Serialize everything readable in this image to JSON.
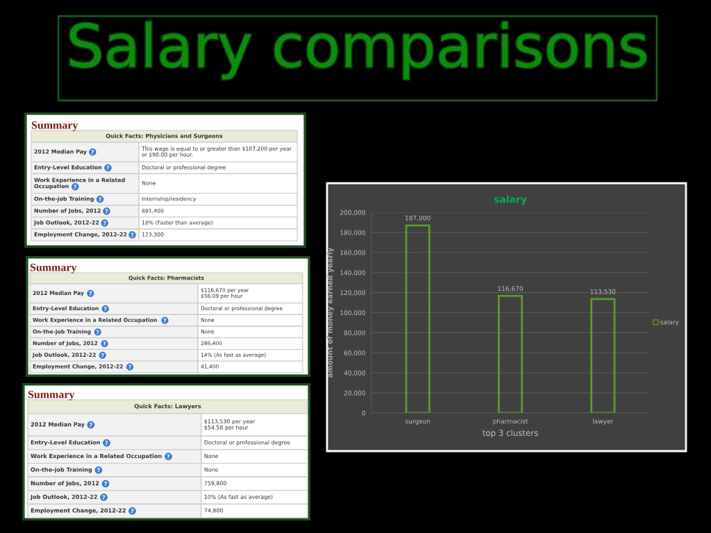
{
  "chart_data": [
    {
      "type": "other",
      "title": "Salary comparisons"
    },
    {
      "type": "other",
      "title": "Summary",
      "subtitle": "Quick Facts: Physicians and Surgeons",
      "annotations": [
        "2012 Median Pay",
        "This wage is equal to or greater than $187,200 per year\nor $90.00 per hour.",
        "Entry-Level Education",
        "Doctoral or professional degree",
        "Work Experience in a Related\nOccupation",
        "None",
        "On-the-job Training",
        "Internship/residency",
        "Number of Jobs, 2012",
        "691,400",
        "Job Outlook, 2012-22",
        "18% (Faster than average)",
        "Employment Change, 2012-22",
        "123,300"
      ]
    },
    {
      "type": "other",
      "title": "Summary",
      "subtitle": "Quick Facts: Pharmacists",
      "annotations": [
        "2012 Median Pay",
        "$116,670 per year\n$56.09 per hour",
        "Entry-Level Education",
        "Doctoral or professional degree",
        "Work Experience in a Related Occupation",
        "None",
        "On-the-job Training",
        "None",
        "Number of Jobs, 2012",
        "286,400",
        "Job Outlook, 2012-22",
        "14% (As fast as average)",
        "Employment Change, 2012-22",
        "41,400"
      ]
    },
    {
      "type": "other",
      "title": "Summary",
      "subtitle": "Quick Facts: Lawyers",
      "annotations": [
        "2012 Median Pay",
        "$113,530 per year\n$54.58 per hour",
        "Entry-Level Education",
        "Doctoral or professional degree",
        "Work Experience in a Related Occupation",
        "None",
        "On-the-job Training",
        "None",
        "Number of Jobs, 2012",
        "759,800",
        "Job Outlook, 2012-22",
        "10% (As fast as average)",
        "Employment Change, 2012-22",
        "74,800"
      ]
    },
    {
      "type": "bar",
      "title": "salary",
      "xlabel": "top 3 clusters",
      "ylabel": "amount of money earned yearly",
      "categories": [
        "surgeon",
        "pharmacist",
        "lawyer"
      ],
      "series": [
        {
          "name": "salary",
          "color": "#5b9b2f",
          "values": [
            187000,
            116670,
            113530
          ],
          "value_labels": [
            "187,000",
            "116,670",
            "113,530"
          ]
        }
      ],
      "ylim": [
        0,
        200000
      ],
      "yticks": [
        0,
        {
          "value": 20000,
          "label": "20,000"
        },
        {
          "value": 40000,
          "label": "40,000"
        },
        {
          "value": 60000,
          "label": "60,000"
        },
        {
          "value": 80000,
          "label": "80,000"
        },
        {
          "value": 100000,
          "label": "100,000"
        },
        {
          "value": 120000,
          "label": "120,000"
        },
        {
          "value": 140000,
          "label": "140,000"
        },
        {
          "value": 160000,
          "label": "160,000"
        },
        {
          "value": 180000,
          "label": "180,000"
        },
        {
          "value": 200000,
          "label": "200,000"
        }
      ],
      "grid": "y",
      "legend": "right"
    }
  ]
}
